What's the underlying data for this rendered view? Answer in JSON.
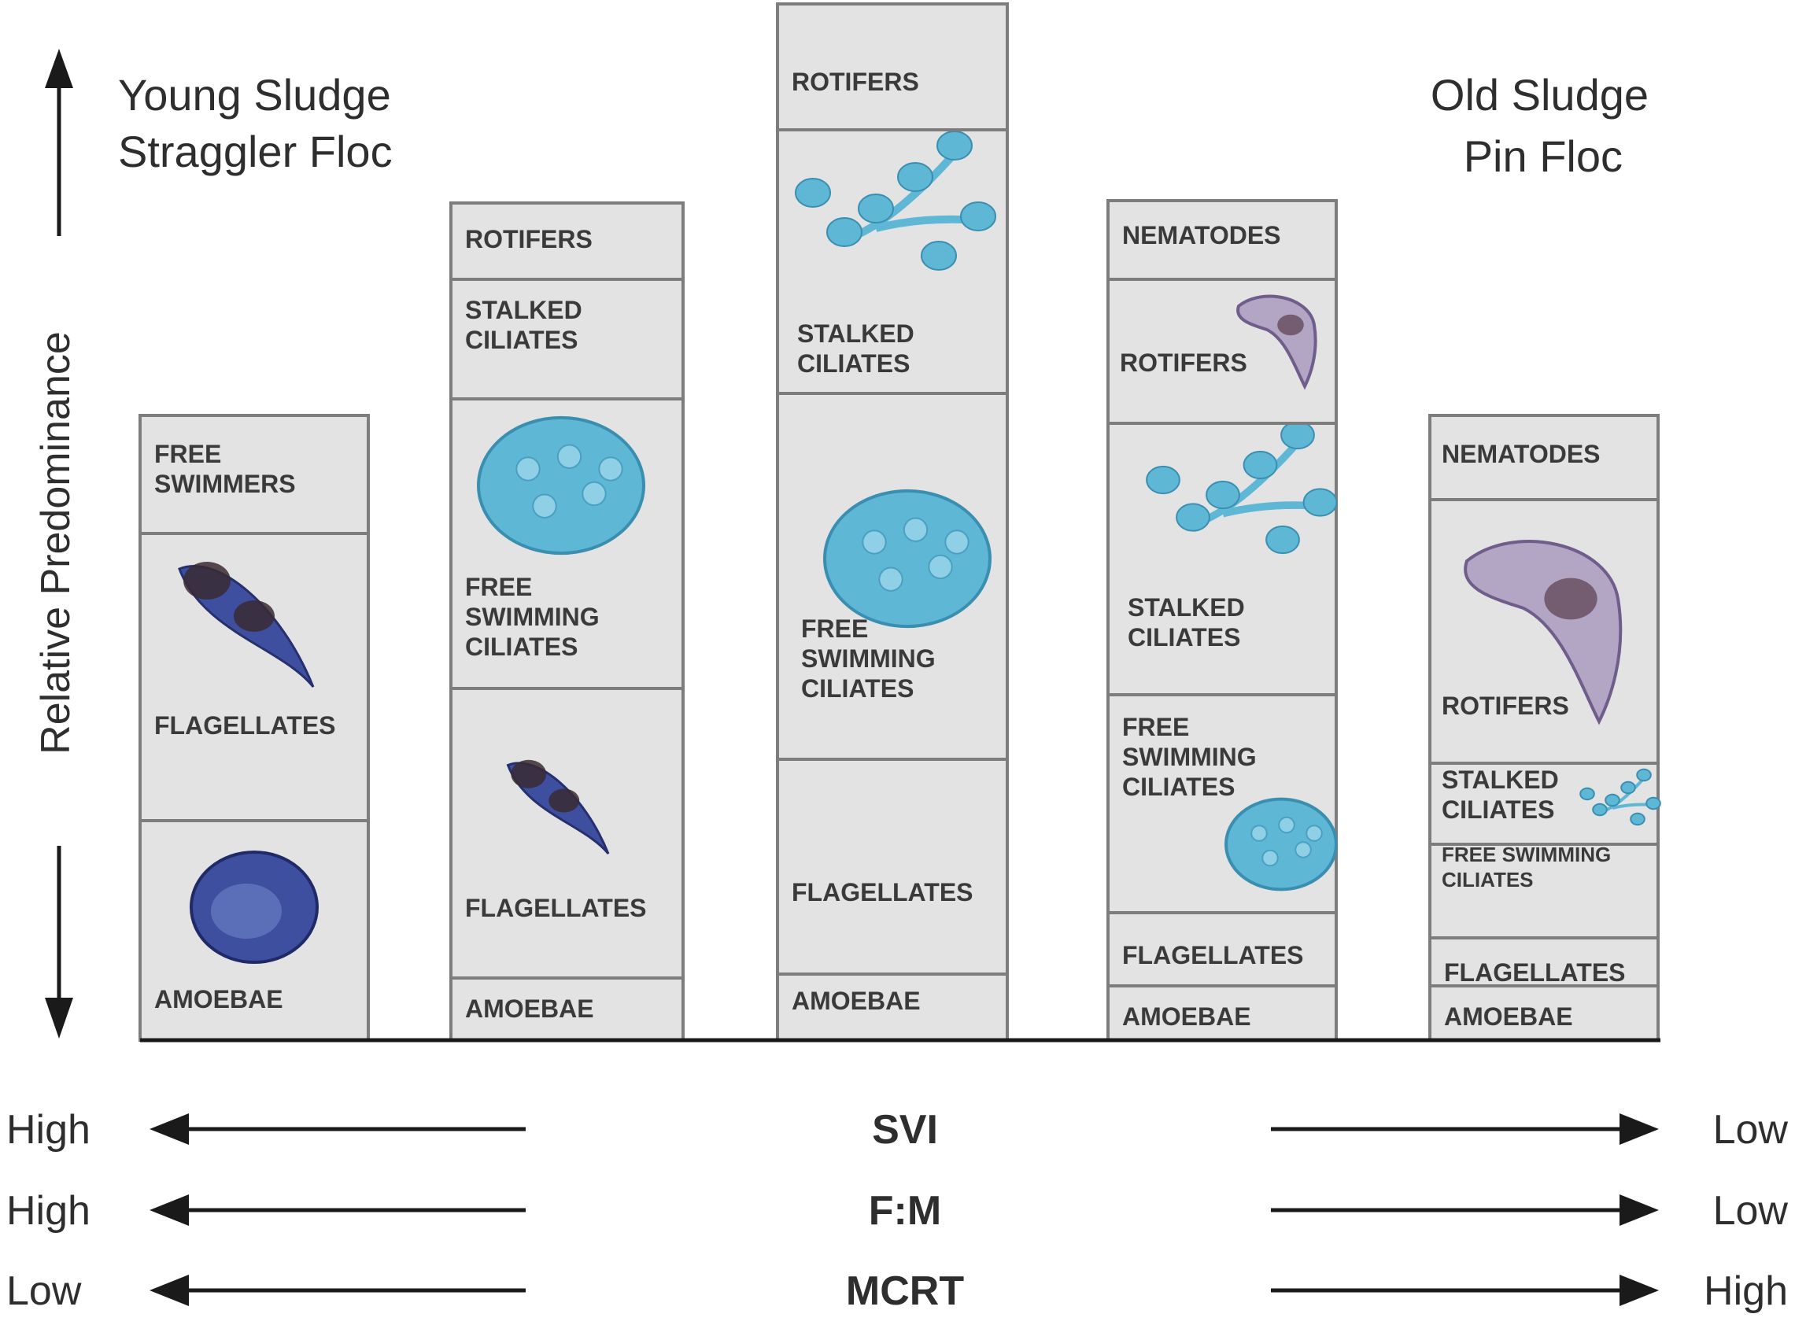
{
  "title_left": {
    "line1": "Young Sludge",
    "line2": "Straggler Floc"
  },
  "title_right": {
    "line1": "Old Sludge",
    "line2": "Pin Floc"
  },
  "y_axis_label": "Relative Predominance",
  "columns": [
    {
      "segments": [
        {
          "lines": [
            "AMOEBAE"
          ],
          "organism": "amoeba"
        },
        {
          "lines": [
            "FLAGELLATES"
          ],
          "organism": "flagellate"
        },
        {
          "lines": [
            "FREE",
            "SWIMMERS"
          ],
          "organism": ""
        }
      ]
    },
    {
      "segments": [
        {
          "lines": [
            "AMOEBAE"
          ],
          "organism": ""
        },
        {
          "lines": [
            "FLAGELLATES"
          ],
          "organism": "flagellate"
        },
        {
          "lines": [
            "FREE",
            "SWIMMING",
            "CILIATES"
          ],
          "organism": "ciliate"
        },
        {
          "lines": [
            "STALKED",
            "CILIATES"
          ],
          "organism": ""
        },
        {
          "lines": [
            "ROTIFERS"
          ],
          "organism": ""
        }
      ]
    },
    {
      "segments": [
        {
          "lines": [
            "AMOEBAE"
          ],
          "organism": ""
        },
        {
          "lines": [
            "FLAGELLATES"
          ],
          "organism": ""
        },
        {
          "lines": [
            "FREE",
            "SWIMMING",
            "CILIATES"
          ],
          "organism": "ciliate"
        },
        {
          "lines": [
            "STALKED",
            "CILIATES"
          ],
          "organism": "stalked"
        },
        {
          "lines": [
            "ROTIFERS"
          ],
          "organism": ""
        }
      ]
    },
    {
      "segments": [
        {
          "lines": [
            "AMOEBAE"
          ],
          "organism": ""
        },
        {
          "lines": [
            "FLAGELLATES"
          ],
          "organism": ""
        },
        {
          "lines": [
            "FREE",
            "SWIMMING",
            "CILIATES"
          ],
          "organism": "ciliate"
        },
        {
          "lines": [
            "STALKED",
            "CILIATES"
          ],
          "organism": "stalked"
        },
        {
          "lines": [
            "ROTIFERS"
          ],
          "organism": "rotifer"
        },
        {
          "lines": [
            "NEMATODES"
          ],
          "organism": ""
        }
      ]
    },
    {
      "segments": [
        {
          "lines": [
            "AMOEBAE"
          ],
          "organism": ""
        },
        {
          "lines": [
            "FLAGELLATES"
          ],
          "organism": ""
        },
        {
          "lines": [
            "FREE SWIMMING",
            "CILIATES"
          ],
          "organism": ""
        },
        {
          "lines": [
            "STALKED",
            "CILIATES"
          ],
          "organism": "stalked"
        },
        {
          "lines": [
            "ROTIFERS"
          ],
          "organism": "rotifer"
        },
        {
          "lines": [
            "NEMATODES"
          ],
          "organism": ""
        }
      ]
    }
  ],
  "gradients": [
    {
      "left": "High",
      "name": "SVI",
      "right": "Low"
    },
    {
      "left": "High",
      "name": "F:M",
      "right": "Low"
    },
    {
      "left": "Low",
      "name": "MCRT",
      "right": "High"
    }
  ],
  "colors": {
    "box_fill": "#e3e3e3",
    "box_stroke": "#7d7d7d",
    "ciliate": "#5fb7d6",
    "flagellate": "#3d4f9e",
    "rotifer": "#6f5d8a",
    "text": "#2e2e2e"
  }
}
